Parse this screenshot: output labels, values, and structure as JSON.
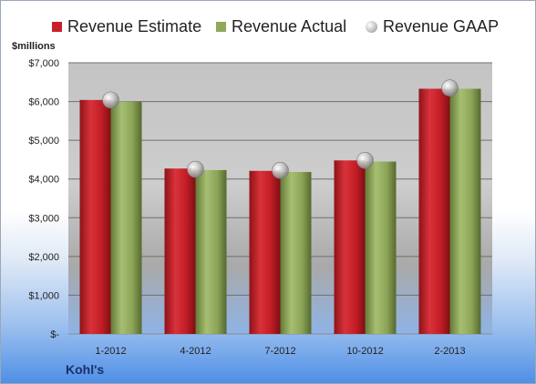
{
  "chart_data": {
    "type": "bar",
    "categories": [
      "1-2012",
      "4-2012",
      "7-2012",
      "10-2012",
      "2-2013"
    ],
    "series": [
      {
        "name": "Revenue Estimate",
        "values": [
          6040,
          4270,
          4210,
          4480,
          6330
        ],
        "color": "#c8202b"
      },
      {
        "name": "Revenue Actual",
        "values": [
          6000,
          4230,
          4180,
          4450,
          6330
        ],
        "color": "#8fa85a"
      },
      {
        "name": "Revenue GAAP",
        "values": [
          6040,
          4250,
          4220,
          4480,
          6350
        ],
        "color": "#b0b0b0"
      }
    ],
    "ylim": [
      0,
      7000
    ],
    "yticks": [
      0,
      1000,
      2000,
      3000,
      4000,
      5000,
      6000,
      7000
    ],
    "ytick_labels": [
      "$-",
      "$1,000",
      "$2,000",
      "$3,000",
      "$4,000",
      "$5,000",
      "$6,000",
      "$7,000"
    ],
    "ylabel": "$millions",
    "grid": true,
    "legend_position": "top"
  },
  "footer": {
    "company": "Kohl's"
  }
}
